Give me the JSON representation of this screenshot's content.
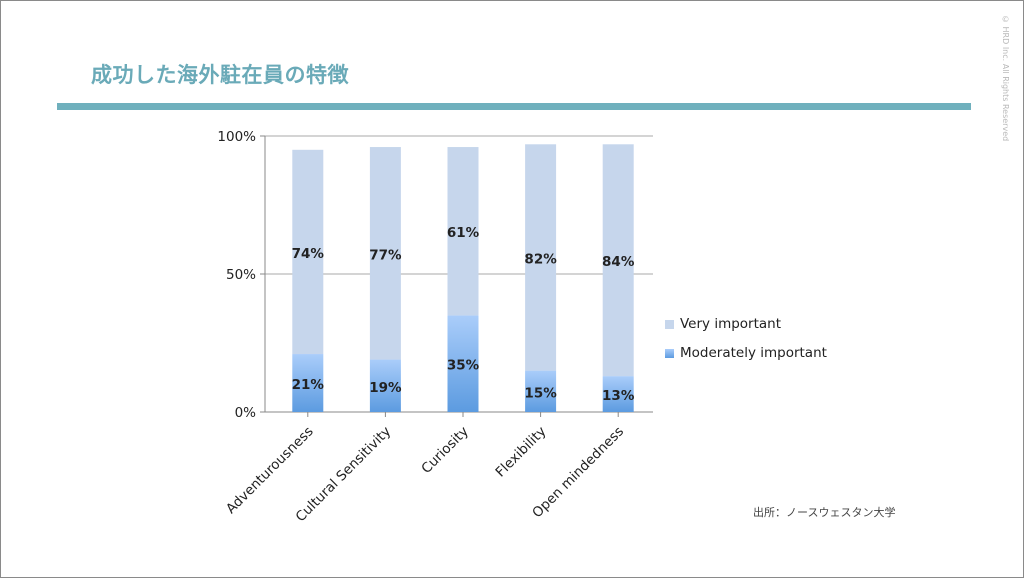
{
  "slide": {
    "title": "成功した海外駐在員の特徴",
    "copyright": "© HRD Inc. All Rights Reserved",
    "source": "出所：ノースウェスタン大学"
  },
  "colors": {
    "accent": "#6fb0bd",
    "very_important": "#c6d6ec",
    "moderately_important_top": "#aacdfa",
    "moderately_important_bottom": "#5c9be0"
  },
  "chart_data": {
    "type": "bar",
    "stacked": true,
    "categories": [
      "Adventurousness",
      "Cultural Sensitivity",
      "Curiosity",
      "Flexibility",
      "Open mindedness"
    ],
    "series": [
      {
        "name": "Moderately important",
        "values": [
          21,
          19,
          35,
          15,
          13
        ],
        "labels": [
          "21%",
          "19%",
          "35%",
          "15%",
          "13%"
        ]
      },
      {
        "name": "Very important",
        "values": [
          74,
          77,
          61,
          82,
          84
        ],
        "labels": [
          "74%",
          "77%",
          "61%",
          "82%",
          "84%"
        ]
      }
    ],
    "ylim": [
      0,
      100
    ],
    "yticks": [
      0,
      50,
      100
    ],
    "ytick_labels": [
      "0%",
      "50%",
      "100%"
    ],
    "grid": true,
    "legend": "right"
  }
}
